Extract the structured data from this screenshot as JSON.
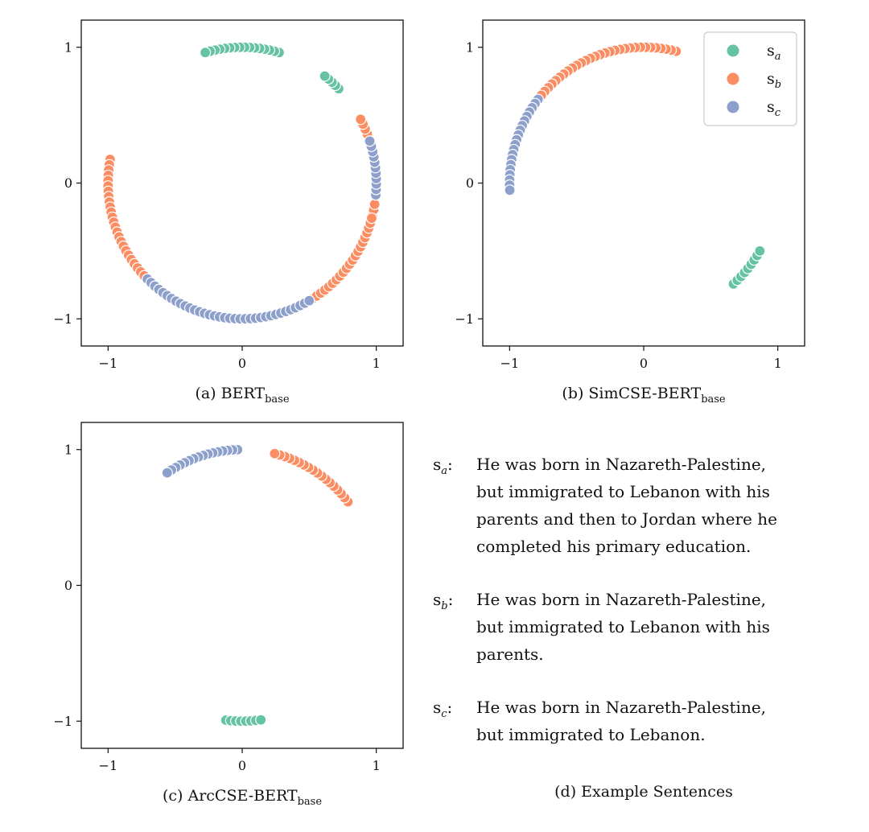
{
  "palette": {
    "s_a": "#66c2a5",
    "s_b": "#fc8d62",
    "s_c": "#8da0cb"
  },
  "chart_data": [
    {
      "type": "scatter",
      "id": "a",
      "caption_main": "(a) BERT",
      "caption_sub": "base",
      "xlim": [
        -1.2,
        1.2
      ],
      "ylim": [
        -1.2,
        1.2
      ],
      "xticks": [
        -1,
        0,
        1
      ],
      "yticks": [
        -1,
        0,
        1
      ],
      "tick_labels": [
        "−1",
        "0",
        "1"
      ],
      "series": [
        {
          "name": "s_a",
          "arcs": [
            [
              74,
              106
            ],
            [
              44,
              52
            ]
          ]
        },
        {
          "name": "s_b",
          "arcs": [
            [
              12,
              28
            ],
            [
              -21,
              -9
            ],
            [
              170,
              188
            ],
            [
              188,
              245
            ],
            [
              269,
              345
            ]
          ]
        },
        {
          "name": "s_c",
          "arcs": [
            [
              -5,
              18
            ],
            [
              225,
              300
            ]
          ]
        }
      ]
    },
    {
      "type": "scatter",
      "id": "b",
      "caption_main": "(b) SimCSE-BERT",
      "caption_sub": "base",
      "xlim": [
        -1.2,
        1.2
      ],
      "ylim": [
        -1.2,
        1.2
      ],
      "xticks": [
        -1,
        0,
        1
      ],
      "yticks": [
        -1,
        0,
        1
      ],
      "tick_labels": [
        "−1",
        "0",
        "1"
      ],
      "series": [
        {
          "name": "s_a",
          "arcs": [
            [
              -48,
              -30
            ]
          ]
        },
        {
          "name": "s_b",
          "arcs": [
            [
              76,
              142
            ]
          ]
        },
        {
          "name": "s_c",
          "arcs": [
            [
              142,
              183
            ]
          ]
        }
      ],
      "legend": {
        "placement": "top-right",
        "entries": [
          "s_a",
          "s_b",
          "s_c"
        ]
      }
    },
    {
      "type": "scatter",
      "id": "c",
      "caption_main": "(c) ArcCSE-BERT",
      "caption_sub": "base",
      "xlim": [
        -1.2,
        1.2
      ],
      "ylim": [
        -1.2,
        1.2
      ],
      "xticks": [
        -1,
        0,
        1
      ],
      "yticks": [
        -1,
        0,
        1
      ],
      "tick_labels": [
        "−1",
        "0",
        "1"
      ],
      "series": [
        {
          "name": "s_a",
          "arcs": [
            [
              -97,
              -82
            ]
          ]
        },
        {
          "name": "s_b",
          "arcs": [
            [
              38,
              76
            ]
          ]
        },
        {
          "name": "s_c",
          "arcs": [
            [
              92,
              124
            ]
          ]
        }
      ]
    }
  ],
  "legend_labels": {
    "s_a": "a",
    "s_b": "b",
    "s_c": "c"
  },
  "sentences": [
    {
      "sub": "a",
      "lines": [
        "He was born in Nazareth-Palestine,",
        "but immigrated to Lebanon with his",
        "parents and then to Jordan where he",
        "completed his primary education."
      ]
    },
    {
      "sub": "b",
      "lines": [
        "He was born in Nazareth-Palestine,",
        "but immigrated to Lebanon with his",
        "parents."
      ]
    },
    {
      "sub": "c",
      "lines": [
        "He was born in Nazareth-Palestine,",
        "but immigrated to Lebanon."
      ]
    }
  ],
  "panel_d_caption": "(d) Example Sentences"
}
